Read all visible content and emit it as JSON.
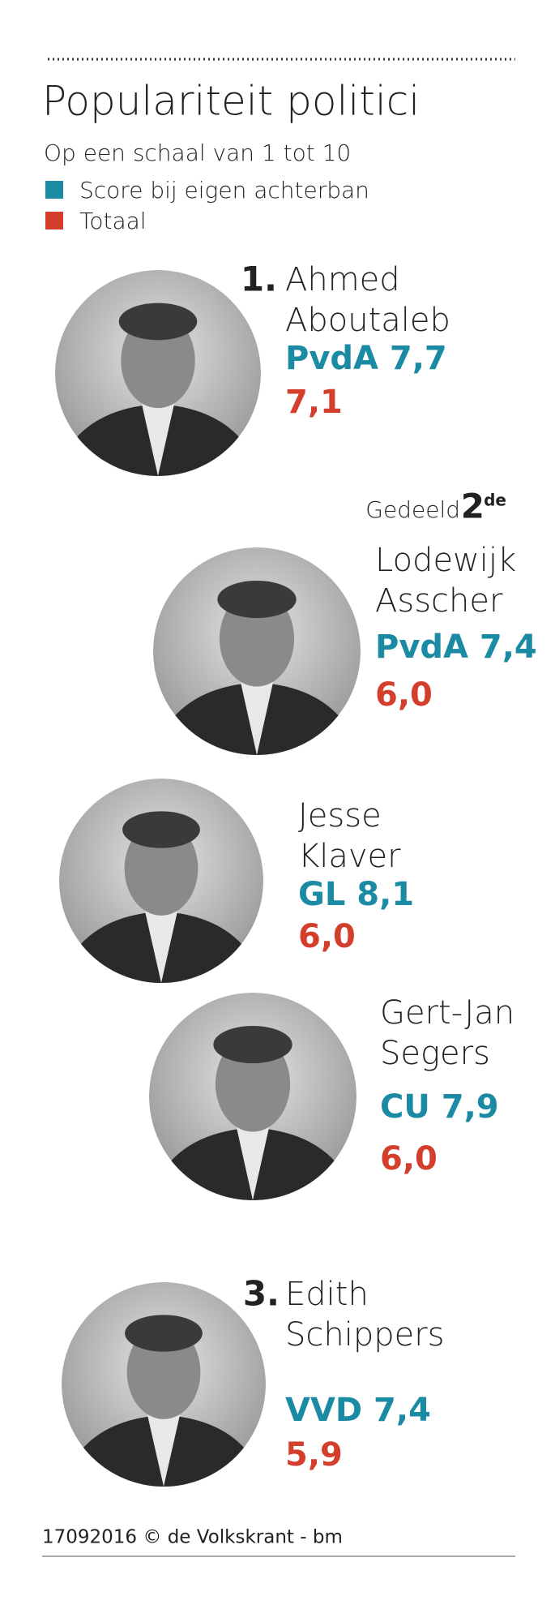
{
  "header": {
    "title": "Populariteit politici",
    "subtitle": "Op een schaal van 1 tot 10"
  },
  "legend": [
    {
      "label": "Score bij eigen achterban",
      "color": "#1b8aa3"
    },
    {
      "label": "Totaal",
      "color": "#d33f2c"
    }
  ],
  "shared_rank": {
    "prefix": "Gedeeld",
    "rank": "2",
    "suffix": "de"
  },
  "people": [
    {
      "rank": "1.",
      "name": [
        "Ahmed",
        "Aboutaleb"
      ],
      "party_score": "PvdA 7,7",
      "total": "7,1"
    },
    {
      "name": [
        "Lodewijk",
        "Asscher"
      ],
      "party_score": "PvdA 7,4",
      "total": "6,0"
    },
    {
      "name": [
        "Jesse",
        "Klaver"
      ],
      "party_score": "GL 8,1",
      "total": "6,0"
    },
    {
      "name": [
        "Gert-Jan",
        "Segers"
      ],
      "party_score": "CU 7,9",
      "total": "6,0"
    },
    {
      "rank": "3.",
      "name": [
        "Edith",
        "Schippers"
      ],
      "party_score": "VVD 7,4",
      "total": "5,9"
    }
  ],
  "footer": "17092016 © de Volkskrant - bm"
}
